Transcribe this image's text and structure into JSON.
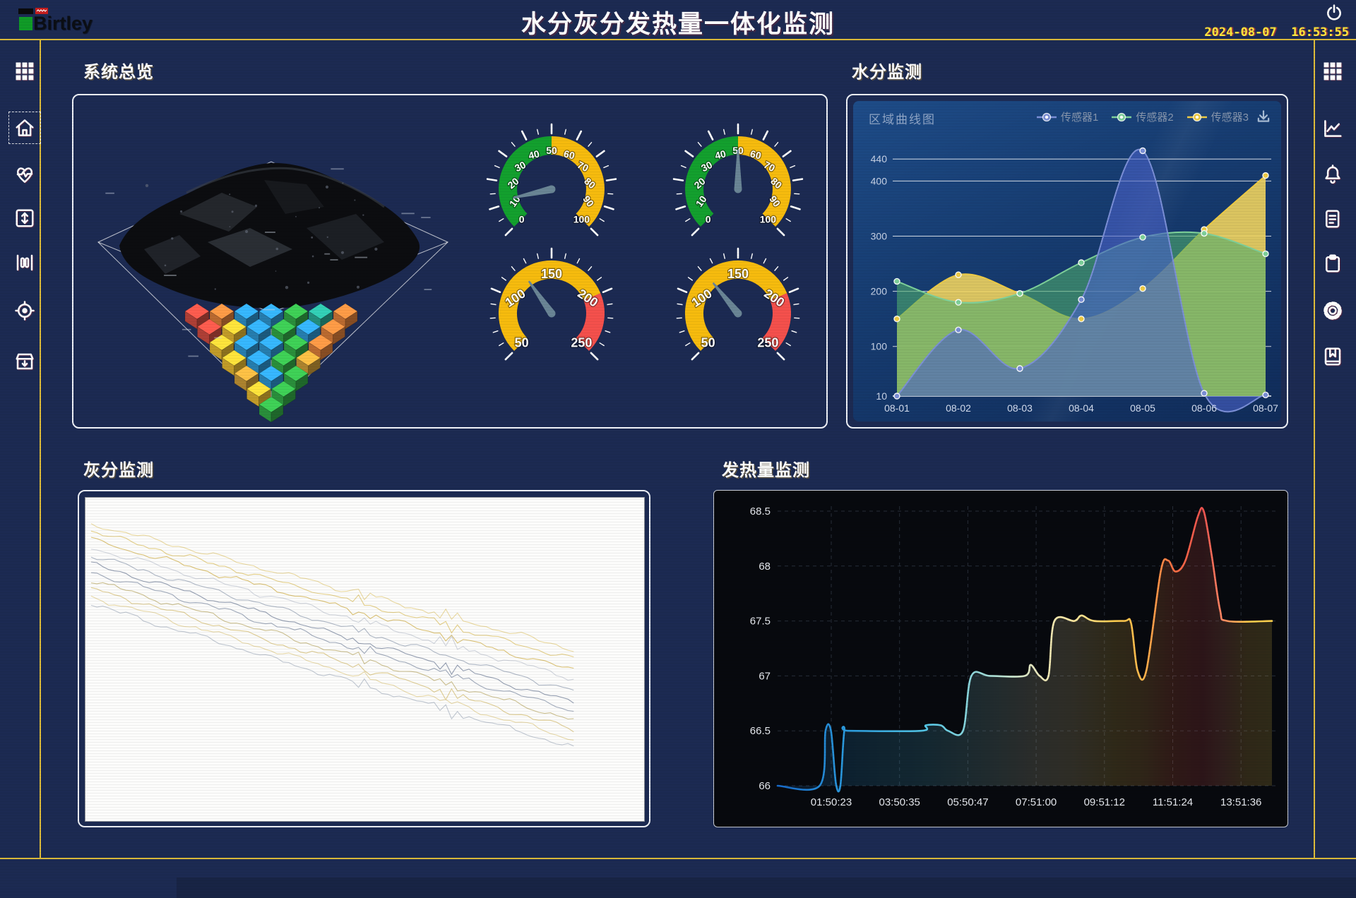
{
  "header": {
    "logo_text": "Birtley",
    "title": "水分灰分发热量一体化监测",
    "datetime": "2024-08-07  16:53:55"
  },
  "sidebar_left": {
    "items": [
      {
        "label": "menu",
        "icon": "grid-icon"
      },
      {
        "label": "home",
        "icon": "home-icon",
        "active": true
      },
      {
        "label": "health-monitor",
        "icon": "heart-pulse-icon"
      },
      {
        "label": "range",
        "icon": "vertical-arrows-icon"
      },
      {
        "label": "columns",
        "icon": "columns-icon"
      },
      {
        "label": "locate",
        "icon": "target-icon"
      },
      {
        "label": "archive",
        "icon": "archive-down-icon"
      }
    ]
  },
  "sidebar_right": {
    "items": [
      {
        "label": "menu",
        "icon": "grid-icon"
      },
      {
        "label": "trend",
        "icon": "line-chart-icon"
      },
      {
        "label": "alarms",
        "icon": "bell-icon"
      },
      {
        "label": "report",
        "icon": "document-icon"
      },
      {
        "label": "tasks",
        "icon": "clipboard-icon"
      },
      {
        "label": "settings",
        "icon": "gear-icon"
      },
      {
        "label": "records",
        "icon": "book-icon"
      }
    ]
  },
  "sections": {
    "overview": {
      "title": "系统总览"
    },
    "moisture": {
      "title": "水分监测",
      "chart_header": "区域曲线图"
    },
    "ash": {
      "title": "灰分监测"
    },
    "calorific": {
      "title": "发热量监测"
    }
  },
  "colors": {
    "background": "#1c2a52",
    "frame_accent": "#dfbd3a",
    "clock_text": "#ffe93c",
    "panel_border": "#eef1f7",
    "gauge_green": "#13a02e",
    "gauge_yellow": "#f6bb0e",
    "gauge_red": "#f4504c"
  },
  "overview_visual": {
    "palette": {
      "red": "#d94f43",
      "orange": "#e8843c",
      "blue": "#2f9cd9",
      "green": "#35b24a",
      "teal": "#2bb19b",
      "yellow": "#f1c233",
      "gold": "#d7a43b"
    },
    "rows": [
      [
        "red",
        "orange",
        "blue",
        "blue",
        "green",
        "teal",
        "orange"
      ],
      [
        "red",
        "yellow",
        "blue",
        "green",
        "blue",
        "orange"
      ],
      [
        "yellow",
        "blue",
        "blue",
        "green",
        "orange"
      ],
      [
        "yellow",
        "blue",
        "green",
        "gold"
      ],
      [
        "gold",
        "blue",
        "green"
      ],
      [
        "yellow",
        "green"
      ],
      [
        "green"
      ]
    ]
  },
  "chart_data": [
    {
      "id": "moisture",
      "type": "area",
      "title": "区域曲线图",
      "categories": [
        "08-01",
        "08-02",
        "08-03",
        "08-04",
        "08-05",
        "08-06",
        "08-07"
      ],
      "series": [
        {
          "name": "传感器1",
          "color": "#7b8fd6",
          "fill": "#4a63c8",
          "fill_opacity": 0.62,
          "values": [
            10,
            130,
            60,
            185,
            455,
            15,
            12
          ]
        },
        {
          "name": "传感器2",
          "color": "#7ed09a",
          "fill": "#4fae6e",
          "fill_opacity": 0.6,
          "values": [
            218,
            180,
            196,
            252,
            298,
            305,
            268
          ]
        },
        {
          "name": "传感器3",
          "color": "#eecb45",
          "fill": "#f0d45f",
          "fill_opacity": 0.9,
          "values": [
            150,
            230,
            196,
            150,
            205,
            312,
            410
          ]
        }
      ],
      "y_ticks": [
        10,
        100,
        200,
        300,
        400,
        440
      ],
      "legend_position": "top-right"
    },
    {
      "id": "ash",
      "type": "line",
      "background": "#fcfcfb",
      "x_end_fraction": 0.88,
      "series": [
        {
          "color": "#e9d79a",
          "y_start": 0.08,
          "y_end": 0.47,
          "seed": 11
        },
        {
          "color": "#e3cc82",
          "y_start": 0.105,
          "y_end": 0.5,
          "seed": 23
        },
        {
          "color": "#d9bf6e",
          "y_start": 0.13,
          "y_end": 0.535,
          "seed": 35
        },
        {
          "color": "#cdd2da",
          "y_start": 0.155,
          "y_end": 0.56,
          "seed": 47
        },
        {
          "color": "#aab3c2",
          "y_start": 0.18,
          "y_end": 0.6,
          "seed": 59
        },
        {
          "color": "#8e99ad",
          "y_start": 0.205,
          "y_end": 0.635,
          "seed": 71
        },
        {
          "color": "#9aa4b6",
          "y_start": 0.23,
          "y_end": 0.66,
          "seed": 83
        },
        {
          "color": "#c9bd8a",
          "y_start": 0.255,
          "y_end": 0.69,
          "seed": 95
        },
        {
          "color": "#dcc98c",
          "y_start": 0.28,
          "y_end": 0.72,
          "seed": 107
        },
        {
          "color": "#e6d6a2",
          "y_start": 0.305,
          "y_end": 0.75,
          "seed": 119
        },
        {
          "color": "#bdc4cf",
          "y_start": 0.33,
          "y_end": 0.775,
          "seed": 131
        }
      ]
    },
    {
      "id": "calorific",
      "type": "line",
      "x_labels": [
        "01:50:23",
        "03:50:35",
        "05:50:47",
        "07:51:00",
        "09:51:12",
        "11:51:24",
        "13:51:36"
      ],
      "y_ticks": [
        66,
        66.5,
        67,
        67.5,
        68,
        68.5
      ],
      "ylim": [
        66,
        68.5
      ],
      "points": [
        [
          0,
          66
        ],
        [
          0.085,
          66
        ],
        [
          0.097,
          66.5
        ],
        [
          0.108,
          66.5
        ],
        [
          0.118,
          66.02
        ],
        [
          0.127,
          66
        ],
        [
          0.135,
          66.5
        ],
        [
          0.145,
          66.5
        ],
        [
          0.29,
          66.5
        ],
        [
          0.3,
          66.55
        ],
        [
          0.33,
          66.55
        ],
        [
          0.345,
          66.5
        ],
        [
          0.375,
          66.5
        ],
        [
          0.392,
          67
        ],
        [
          0.43,
          67
        ],
        [
          0.5,
          67
        ],
        [
          0.512,
          67.1
        ],
        [
          0.53,
          67
        ],
        [
          0.548,
          67
        ],
        [
          0.56,
          67.5
        ],
        [
          0.6,
          67.5
        ],
        [
          0.615,
          67.55
        ],
        [
          0.64,
          67.5
        ],
        [
          0.7,
          67.5
        ],
        [
          0.715,
          67.48
        ],
        [
          0.728,
          67.05
        ],
        [
          0.746,
          67.05
        ],
        [
          0.775,
          67.95
        ],
        [
          0.79,
          68.05
        ],
        [
          0.805,
          67.95
        ],
        [
          0.825,
          68.05
        ],
        [
          0.85,
          68.45
        ],
        [
          0.862,
          68.5
        ],
        [
          0.878,
          68.1
        ],
        [
          0.895,
          67.6
        ],
        [
          0.91,
          67.5
        ],
        [
          1,
          67.5
        ]
      ],
      "line_gradient": [
        [
          0,
          "#1769c8"
        ],
        [
          0.15,
          "#2d9fe0"
        ],
        [
          0.3,
          "#55c8e8"
        ],
        [
          0.42,
          "#9fdcd8"
        ],
        [
          0.52,
          "#e8e8c0"
        ],
        [
          0.6,
          "#ffe9a0"
        ],
        [
          0.68,
          "#ffd04f"
        ],
        [
          0.74,
          "#ffb74d"
        ],
        [
          0.8,
          "#ff7043"
        ],
        [
          0.86,
          "#ef5350"
        ],
        [
          0.9,
          "#ff8a65"
        ],
        [
          0.95,
          "#ffc94b"
        ],
        [
          1,
          "#ffd54f"
        ]
      ]
    },
    {
      "id": "gauges",
      "type": "gauge",
      "needle_color": "#6a8595",
      "items": [
        {
          "min": 0,
          "max": 100,
          "value": 12,
          "labels": [
            0,
            10,
            20,
            30,
            40,
            50,
            60,
            70,
            80,
            90,
            100
          ],
          "bands": [
            {
              "to": 50,
              "color": "#13a02e"
            },
            {
              "to": 100,
              "color": "#f6bb0e"
            }
          ]
        },
        {
          "min": 0,
          "max": 100,
          "value": 50,
          "labels": [
            0,
            10,
            20,
            30,
            40,
            50,
            60,
            70,
            80,
            90,
            100
          ],
          "bands": [
            {
              "to": 50,
              "color": "#13a02e"
            },
            {
              "to": 100,
              "color": "#f6bb0e"
            }
          ]
        },
        {
          "min": 50,
          "max": 250,
          "value": 124,
          "labels": [
            50,
            100,
            150,
            200,
            250
          ],
          "bands": [
            {
              "to": 200,
              "color": "#f6bb0e"
            },
            {
              "to": 250,
              "color": "#f4504c"
            }
          ]
        },
        {
          "min": 50,
          "max": 250,
          "value": 121,
          "labels": [
            50,
            100,
            150,
            200,
            250
          ],
          "bands": [
            {
              "to": 200,
              "color": "#f6bb0e"
            },
            {
              "to": 250,
              "color": "#f4504c"
            }
          ]
        }
      ]
    }
  ]
}
